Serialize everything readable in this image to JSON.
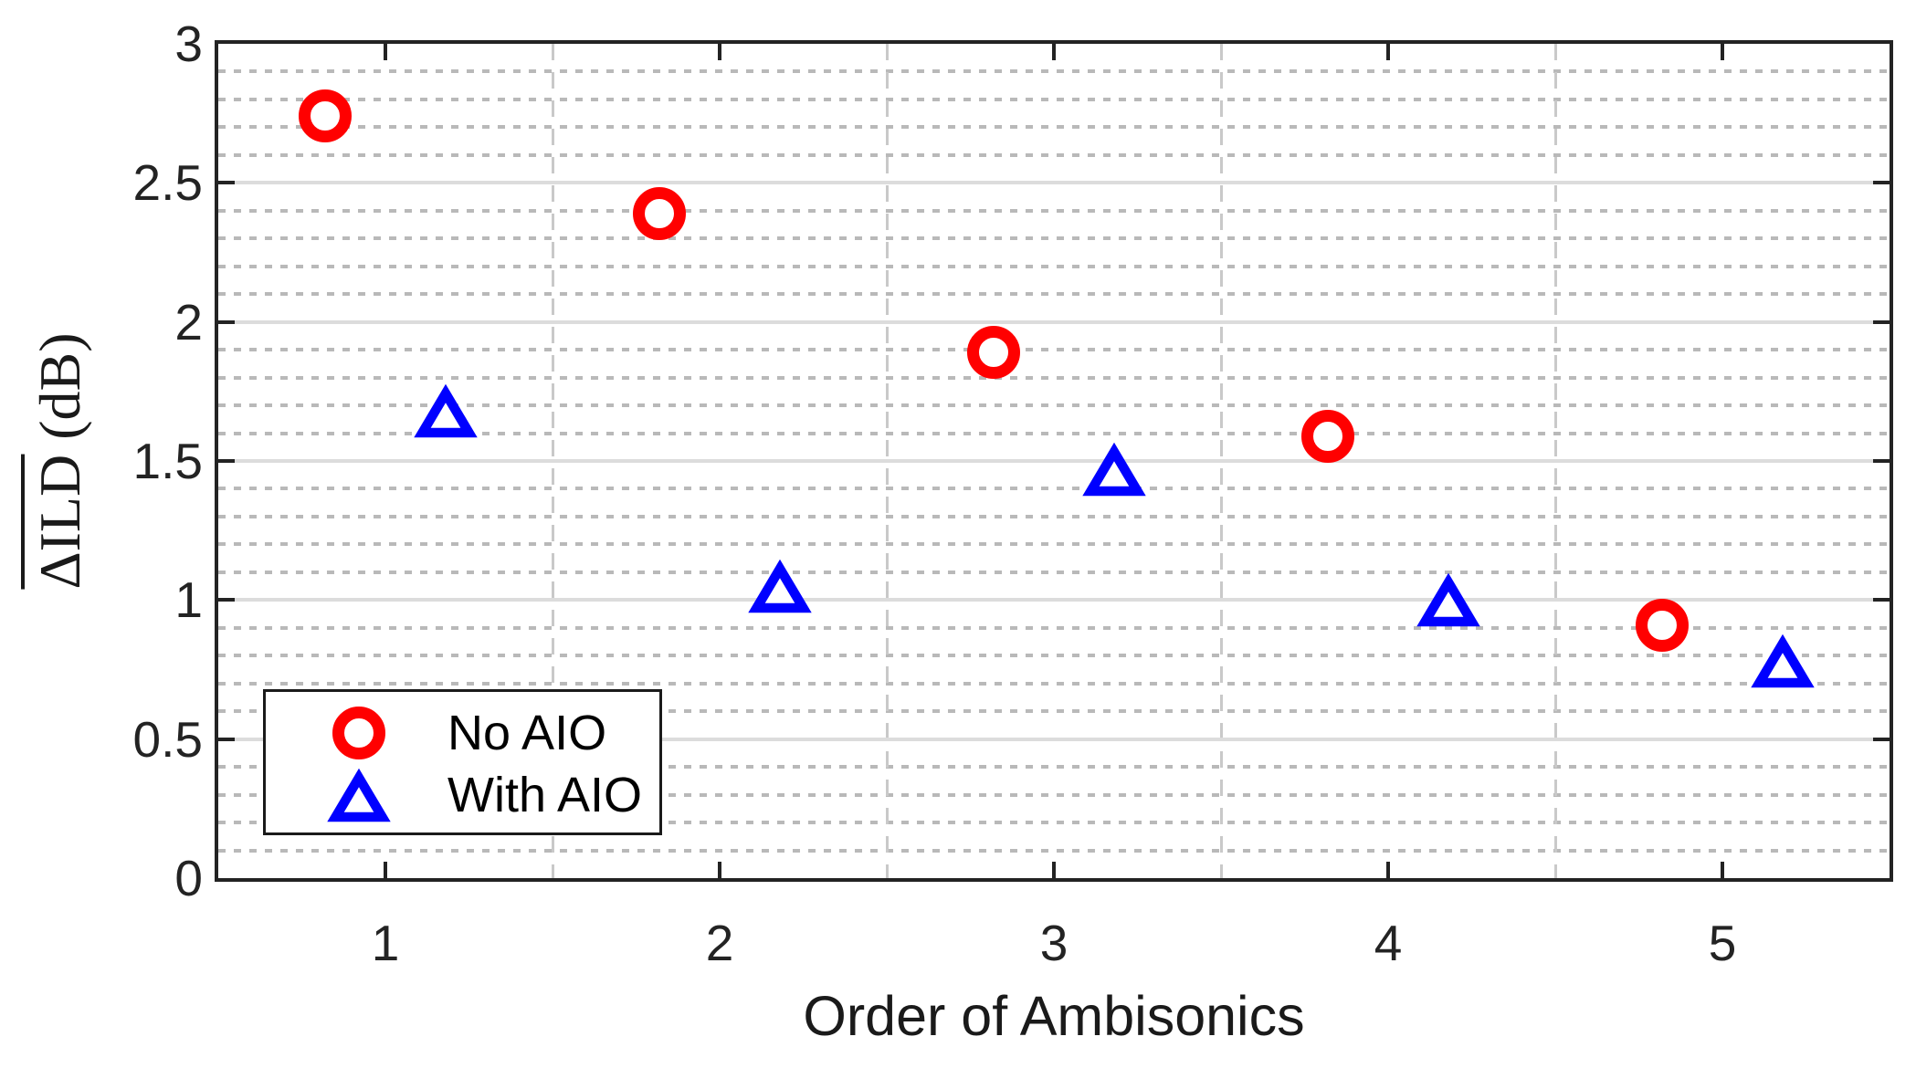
{
  "figure": {
    "background": "#ffffff",
    "axis_color": "#232323",
    "major_grid_color": "#dcdcdc",
    "minor_grid_color": "#b9b9b9",
    "dashed_grid_color": "#c9c9c9"
  },
  "chart_data": {
    "type": "scatter",
    "title": "",
    "xlabel": "Order of Ambisonics",
    "ylabel_overlined": "ΔILD",
    "ylabel_units": " (dB)",
    "xlim": [
      0.5,
      5.5
    ],
    "ylim": [
      0,
      3
    ],
    "x_ticks": [
      1,
      2,
      3,
      4,
      5
    ],
    "x_tick_labels": [
      "1",
      "2",
      "3",
      "4",
      "5"
    ],
    "y_ticks": [
      0,
      0.5,
      1,
      1.5,
      2,
      2.5,
      3
    ],
    "y_tick_labels": [
      "0",
      "0.5",
      "1",
      "1.5",
      "2",
      "2.5",
      "3"
    ],
    "y_major_gridlines": [
      0.5,
      1.0,
      1.5,
      2.0,
      2.5
    ],
    "y_minor_grid_step": 0.1,
    "x_minor_gridlines": [
      1.5,
      2.5,
      3.5,
      4.5
    ],
    "grid": "major-solid, minor-dotted",
    "legend_position": "lower-left",
    "series": [
      {
        "name": "No AIO",
        "marker": "circle",
        "color": "#ff0000",
        "points": [
          [
            0.82,
            2.74
          ],
          [
            1.82,
            2.39
          ],
          [
            2.82,
            1.89
          ],
          [
            3.82,
            1.59
          ],
          [
            4.82,
            0.91
          ]
        ]
      },
      {
        "name": "With AIO",
        "marker": "triangle",
        "color": "#0000ff",
        "points": [
          [
            1.18,
            1.68
          ],
          [
            2.18,
            1.05
          ],
          [
            3.18,
            1.47
          ],
          [
            4.18,
            1.0
          ],
          [
            5.18,
            0.78
          ]
        ]
      }
    ]
  }
}
